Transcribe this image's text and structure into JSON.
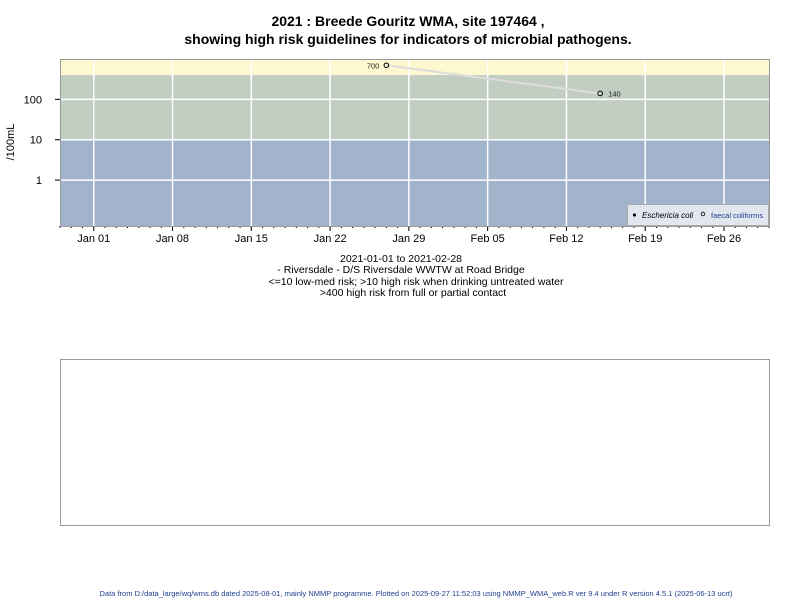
{
  "chart_data": {
    "type": "scatter",
    "title_lines": [
      "2021 : Breede Gouritz WMA, site 197464 ,",
      "showing high risk guidelines for indicators of microbial pathogens."
    ],
    "ylabel": "/100mL",
    "y_scale": "log",
    "ylim": [
      0.073,
      1000
    ],
    "y_ticks": [
      {
        "value": 1,
        "label": "1"
      },
      {
        "value": 10,
        "label": "10"
      },
      {
        "value": 100,
        "label": "100"
      }
    ],
    "xlim": [
      "2020-12-29",
      "2021-03-02"
    ],
    "x_ticks": [
      {
        "date": "2021-01-01",
        "label": "Jan 01"
      },
      {
        "date": "2021-01-08",
        "label": "Jan 08"
      },
      {
        "date": "2021-01-15",
        "label": "Jan 15"
      },
      {
        "date": "2021-01-22",
        "label": "Jan 22"
      },
      {
        "date": "2021-01-29",
        "label": "Jan 29"
      },
      {
        "date": "2021-02-05",
        "label": "Feb 05"
      },
      {
        "date": "2021-02-12",
        "label": "Feb 12"
      },
      {
        "date": "2021-02-19",
        "label": "Feb 19"
      },
      {
        "date": "2021-02-26",
        "label": "Feb 26"
      }
    ],
    "grid": true,
    "bands": [
      {
        "from": 400,
        "to": 1000,
        "color": "#fdf8d0"
      },
      {
        "from": 10,
        "to": 400,
        "color": "#c2cdc1"
      },
      {
        "from": 0.073,
        "to": 10,
        "color": "#a2b3cc"
      }
    ],
    "series": [
      {
        "name": "Eschericia coli",
        "marker": "filled-circle",
        "points": []
      },
      {
        "name": "faecal coliforms",
        "marker": "open-circle",
        "line_color": "#dddddd",
        "points": [
          {
            "x": "2021-01-27",
            "y": 700,
            "label": "700"
          },
          {
            "x": "2021-02-15",
            "y": 140,
            "label": "140"
          }
        ]
      }
    ],
    "legend_position": "bottom-right"
  },
  "caption": {
    "lines": [
      "2021-01-01 to 2021-02-28",
      "- Riversdale - D/S Riversdale WWTW at Road Bridge",
      "<=10 low-med risk; >10 high risk when drinking untreated water",
      ">400 high risk from full or partial contact"
    ]
  },
  "footer": "Data from D:/data_large/wq/wms.db dated 2025-08-01, mainly NMMP programme. Plotted on 2025-09-27 11:52:03 using NMMP_WMA_web.R ver 9.4 under R version 4.5.1 (2025-06-13 ucrt)"
}
